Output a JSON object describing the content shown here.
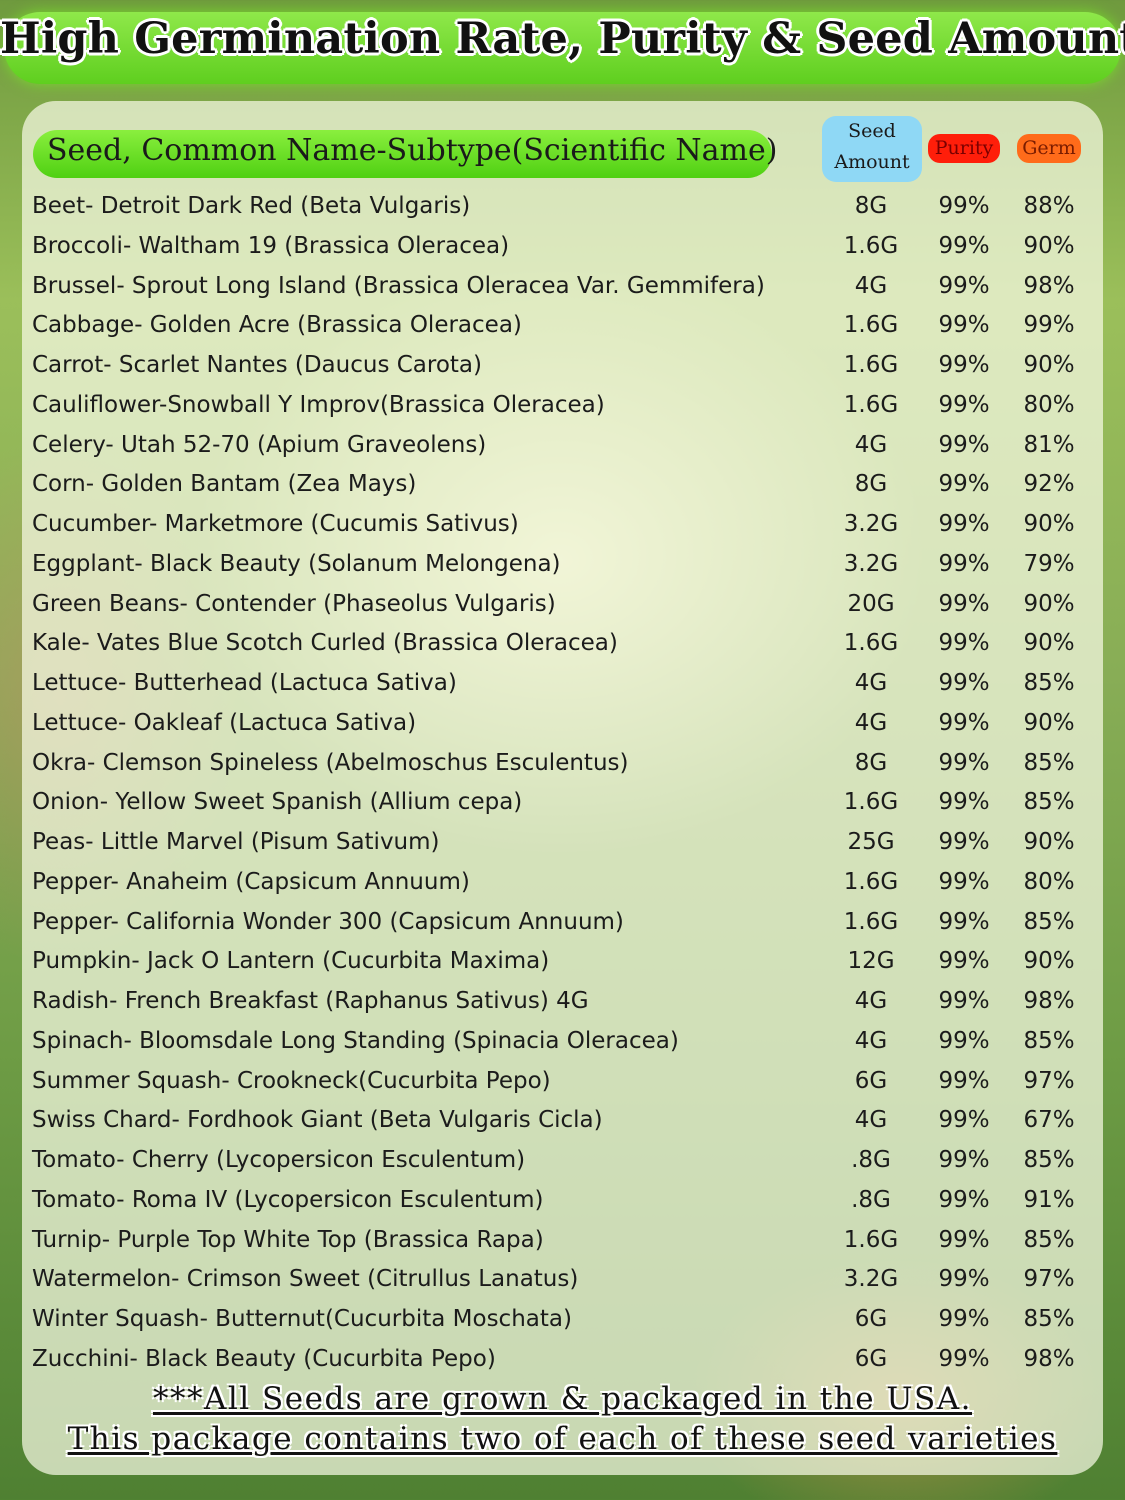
{
  "title": "High Germination Rate, Purity & Seed Amounts",
  "header": {
    "name_column": "Seed, Common Name-Subtype(Scientific Name)",
    "amount_column_line1": "Seed",
    "amount_column_line2": "Amount",
    "purity_column": "Purity",
    "germ_column": "Germ"
  },
  "colors": {
    "banner": "#5fcf1f",
    "seed_amount_header": "#8fd8f5",
    "purity_header": "#ff1e0a",
    "germ_header": "#ff6b1a"
  },
  "rows": [
    {
      "name": "Beet- Detroit Dark Red (Beta Vulgaris)",
      "amount": "8G",
      "purity": "99%",
      "germ": "88%"
    },
    {
      "name": "Broccoli- Waltham 19 (Brassica Oleracea)",
      "amount": "1.6G",
      "purity": "99%",
      "germ": "90%"
    },
    {
      "name": "Brussel- Sprout Long Island (Brassica Oleracea Var. Gemmifera)",
      "amount": "4G",
      "purity": "99%",
      "germ": "98%"
    },
    {
      "name": "Cabbage- Golden Acre (Brassica Oleracea)",
      "amount": "1.6G",
      "purity": "99%",
      "germ": "99%"
    },
    {
      "name": "Carrot- Scarlet Nantes (Daucus Carota)",
      "amount": "1.6G",
      "purity": "99%",
      "germ": "90%"
    },
    {
      "name": "Cauliflower-Snowball Y Improv(Brassica Oleracea)",
      "amount": "1.6G",
      "purity": "99%",
      "germ": "80%"
    },
    {
      "name": "Celery- Utah 52-70 (Apium Graveolens)",
      "amount": "4G",
      "purity": "99%",
      "germ": "81%"
    },
    {
      "name": "Corn- Golden Bantam (Zea Mays)",
      "amount": "8G",
      "purity": "99%",
      "germ": "92%"
    },
    {
      "name": "Cucumber- Marketmore (Cucumis Sativus)",
      "amount": "3.2G",
      "purity": "99%",
      "germ": "90%"
    },
    {
      "name": "Eggplant- Black Beauty (Solanum Melongena)",
      "amount": "3.2G",
      "purity": "99%",
      "germ": "79%"
    },
    {
      "name": "Green Beans- Contender (Phaseolus Vulgaris)",
      "amount": "20G",
      "purity": "99%",
      "germ": "90%"
    },
    {
      "name": "Kale- Vates Blue Scotch Curled (Brassica Oleracea)",
      "amount": "1.6G",
      "purity": "99%",
      "germ": "90%"
    },
    {
      "name": "Lettuce- Butterhead (Lactuca Sativa)",
      "amount": "4G",
      "purity": "99%",
      "germ": "85%"
    },
    {
      "name": "Lettuce- Oakleaf (Lactuca Sativa)",
      "amount": "4G",
      "purity": "99%",
      "germ": "90%"
    },
    {
      "name": "Okra- Clemson Spineless (Abelmoschus Esculentus)",
      "amount": "8G",
      "purity": "99%",
      "germ": "85%"
    },
    {
      "name": "Onion- Yellow Sweet Spanish (Allium cepa)",
      "amount": "1.6G",
      "purity": "99%",
      "germ": "85%"
    },
    {
      "name": "Peas- Little Marvel (Pisum Sativum)",
      "amount": "25G",
      "purity": "99%",
      "germ": "90%"
    },
    {
      "name": "Pepper- Anaheim (Capsicum Annuum)",
      "amount": "1.6G",
      "purity": "99%",
      "germ": "80%"
    },
    {
      "name": "Pepper- California Wonder 300 (Capsicum Annuum)",
      "amount": "1.6G",
      "purity": "99%",
      "germ": "85%"
    },
    {
      "name": "Pumpkin- Jack O Lantern (Cucurbita Maxima)",
      "amount": "12G",
      "purity": "99%",
      "germ": "90%"
    },
    {
      "name": "Radish- French Breakfast (Raphanus Sativus) 4G",
      "amount": "4G",
      "purity": "99%",
      "germ": "98%"
    },
    {
      "name": "Spinach- Bloomsdale Long Standing (Spinacia Oleracea)",
      "amount": "4G",
      "purity": "99%",
      "germ": "85%"
    },
    {
      "name": "Summer Squash- Crookneck(Cucurbita Pepo)",
      "amount": "6G",
      "purity": "99%",
      "germ": "97%"
    },
    {
      "name": "Swiss Chard- Fordhook Giant (Beta Vulgaris Cicla)",
      "amount": "4G",
      "purity": "99%",
      "germ": "67%"
    },
    {
      "name": "Tomato- Cherry (Lycopersicon Esculentum)",
      "amount": ".8G",
      "purity": "99%",
      "germ": "85%"
    },
    {
      "name": "Tomato- Roma IV (Lycopersicon Esculentum)",
      "amount": ".8G",
      "purity": "99%",
      "germ": "91%"
    },
    {
      "name": "Turnip- Purple Top White Top (Brassica Rapa)",
      "amount": "1.6G",
      "purity": "99%",
      "germ": "85%"
    },
    {
      "name": "Watermelon- Crimson Sweet (Citrullus Lanatus)",
      "amount": "3.2G",
      "purity": "99%",
      "germ": "97%"
    },
    {
      "name": "Winter Squash- Butternut(Cucurbita Moschata)",
      "amount": "6G",
      "purity": "99%",
      "germ": "85%"
    },
    {
      "name": "Zucchini- Black Beauty (Cucurbita Pepo)",
      "amount": "6G",
      "purity": "99%",
      "germ": "98%"
    }
  ],
  "footer": {
    "line1": "***All Seeds are grown & packaged in the USA.",
    "line2": "This package contains two of each of these seed varieties"
  }
}
